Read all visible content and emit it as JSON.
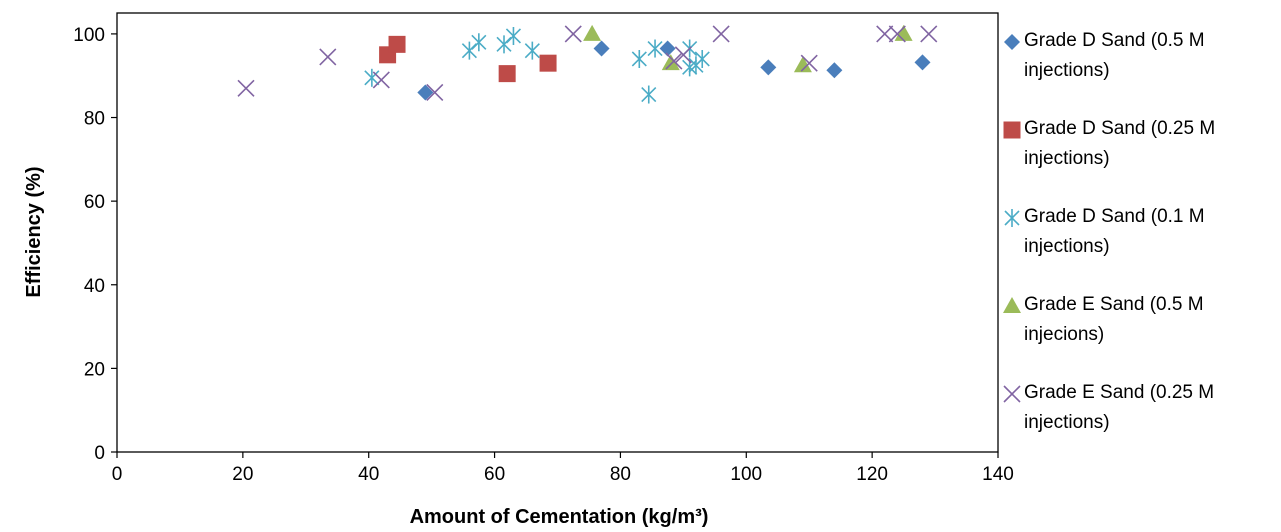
{
  "chart_data": {
    "type": "scatter",
    "title": "",
    "xlabel": "Amount of Cementation (kg/m³)",
    "ylabel": "Efficiency (%)",
    "xlim": [
      0,
      140
    ],
    "ylim": [
      0,
      105
    ],
    "xticks": [
      0,
      20,
      40,
      60,
      80,
      100,
      120,
      140
    ],
    "yticks": [
      0,
      20,
      40,
      60,
      80,
      100
    ],
    "grid": false,
    "legend_position": "right",
    "series": [
      {
        "name": "Grade D Sand (0.5 M injections)",
        "marker": "diamond",
        "color": "#4a7ebb",
        "points": [
          [
            49,
            86
          ],
          [
            77,
            96.5
          ],
          [
            87.5,
            96.5
          ],
          [
            103.5,
            92
          ],
          [
            114,
            91.3
          ],
          [
            128,
            93.2
          ]
        ]
      },
      {
        "name": "Grade D Sand (0.25 M injections)",
        "marker": "square",
        "color": "#be4b48",
        "points": [
          [
            43,
            95
          ],
          [
            44.5,
            97.5
          ],
          [
            62,
            90.5
          ],
          [
            68.5,
            93
          ]
        ]
      },
      {
        "name": "Grade D Sand (0.1 M injections)",
        "marker": "asterisk",
        "color": "#4bacc6",
        "points": [
          [
            40.5,
            89.5
          ],
          [
            56,
            96
          ],
          [
            57.5,
            98
          ],
          [
            61.5,
            97.5
          ],
          [
            63,
            99.5
          ],
          [
            66,
            96
          ],
          [
            83,
            94
          ],
          [
            84.5,
            85.5
          ],
          [
            85.5,
            96.5
          ],
          [
            91,
            92
          ],
          [
            91,
            96.5
          ],
          [
            92,
            92.5
          ],
          [
            93,
            94
          ]
        ]
      },
      {
        "name": "Grade E Sand (0.5 M injecions)",
        "marker": "triangle",
        "color": "#9bbb59",
        "points": [
          [
            75.5,
            100
          ],
          [
            88,
            93
          ],
          [
            109,
            92.5
          ],
          [
            125,
            100
          ]
        ]
      },
      {
        "name": "Grade E Sand (0.25 M injections)",
        "marker": "x",
        "color": "#8064a2",
        "points": [
          [
            20.5,
            87
          ],
          [
            33.5,
            94.5
          ],
          [
            42,
            89
          ],
          [
            50.5,
            86
          ],
          [
            72.5,
            100
          ],
          [
            88.5,
            93.5
          ],
          [
            90,
            95
          ],
          [
            96,
            100
          ],
          [
            110,
            93
          ],
          [
            122,
            100
          ],
          [
            124,
            100
          ],
          [
            129,
            100
          ]
        ]
      }
    ]
  }
}
